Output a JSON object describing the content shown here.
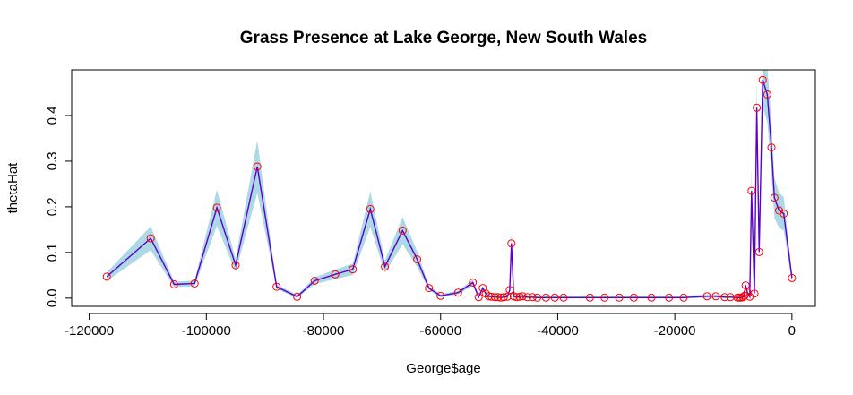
{
  "chart_data": {
    "type": "line",
    "title": "Grass Presence at Lake George, New South Wales",
    "xlabel": "George$age",
    "ylabel": "thetaHat",
    "xlim": [
      -123000,
      4000
    ],
    "ylim": [
      -0.018,
      0.5
    ],
    "x_ticks": [
      -120000,
      -100000,
      -80000,
      -60000,
      -40000,
      -20000,
      0
    ],
    "x_tick_labels": [
      "-120000",
      "-100000",
      "-80000",
      "-60000",
      "-40000",
      "-20000",
      "0"
    ],
    "y_ticks": [
      0.0,
      0.1,
      0.2,
      0.3,
      0.4
    ],
    "y_tick_labels": [
      "0.0",
      "0.1",
      "0.2",
      "0.3",
      "0.4"
    ],
    "grid": false,
    "colors": {
      "band": "#add8e6",
      "line": "#5a00c8",
      "points": "#ff0000",
      "axes": "#000000"
    },
    "series": [
      {
        "x": [
          -117000,
          -109500,
          -105500,
          -102000,
          -98200,
          -95000,
          -91300,
          -88000,
          -84500,
          -81500,
          -78000,
          -75000,
          -72000,
          -69500,
          -66500,
          -64000,
          -62000,
          -60000,
          -57000,
          -54500,
          -53500,
          -52800,
          -52300,
          -51800,
          -51300,
          -50700,
          -50200,
          -49700,
          -49200,
          -48600,
          -48200,
          -47900,
          -47500,
          -47000,
          -46500,
          -46000,
          -45200,
          -44300,
          -43500,
          -42000,
          -40500,
          -39000,
          -34500,
          -32000,
          -29500,
          -27000,
          -24000,
          -21000,
          -18500,
          -14500,
          -13000,
          -11500,
          -10500,
          -9300,
          -9000,
          -8700,
          -8400,
          -8100,
          -7900,
          -7600,
          -7200,
          -6900,
          -6400,
          -6000,
          -5600,
          -5000,
          -4200,
          -3500,
          -3000,
          -2200,
          -1400,
          0
        ],
        "y": [
          0.047,
          0.131,
          0.03,
          0.032,
          0.198,
          0.072,
          0.288,
          0.025,
          0.003,
          0.038,
          0.052,
          0.063,
          0.195,
          0.069,
          0.148,
          0.085,
          0.022,
          0.005,
          0.012,
          0.034,
          0.002,
          0.022,
          0.01,
          0.004,
          0.003,
          0.002,
          0.002,
          0.001,
          0.002,
          0.003,
          0.018,
          0.12,
          0.004,
          0.002,
          0.003,
          0.004,
          0.002,
          0.002,
          0.001,
          0.001,
          0.001,
          0.001,
          0.001,
          0.001,
          0.001,
          0.001,
          0.001,
          0.001,
          0.001,
          0.004,
          0.004,
          0.002,
          0.002,
          0.001,
          0.001,
          0.001,
          0.002,
          0.005,
          0.028,
          0.012,
          0.003,
          0.235,
          0.01,
          0.417,
          0.101,
          0.478,
          0.446,
          0.33,
          0.22,
          0.192,
          0.185,
          0.044
        ]
      }
    ]
  }
}
